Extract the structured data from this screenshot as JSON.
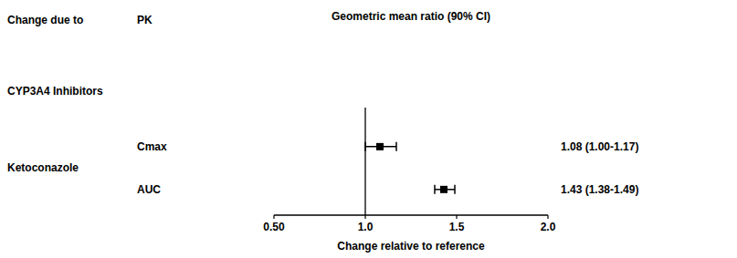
{
  "chart_data": {
    "type": "forest",
    "title": "Geometric mean ratio (90% CI)",
    "column_headers": [
      "Change due to",
      "PK"
    ],
    "section_label": "CYP3A4 Inhibitors",
    "group_label": "Ketoconazole",
    "categories": [
      "Cmax",
      "AUC"
    ],
    "values": [
      1.08,
      1.43
    ],
    "ci_low": [
      1.0,
      1.38
    ],
    "ci_high": [
      1.17,
      1.49
    ],
    "value_labels": [
      "1.08 (1.00-1.17)",
      "1.43 (1.38-1.49)"
    ],
    "x_label": "Change relative to reference",
    "xlim": [
      0.5,
      2.0
    ],
    "xticks": [
      {
        "value": 0.5,
        "label": "0.50"
      },
      {
        "value": 1.0,
        "label": "1.0"
      },
      1.5,
      {
        "value": 2.0,
        "label": "2.0"
      }
    ],
    "reference_line": 1.0,
    "color": "#000000",
    "marker": "square"
  }
}
